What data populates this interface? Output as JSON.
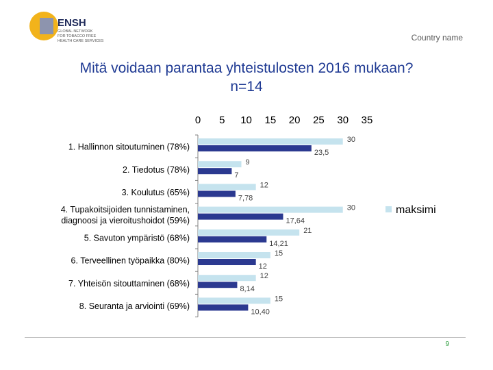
{
  "logo": {
    "name": "ENSH",
    "line1": "GLOBAL NETWORK",
    "line2": "FOR TOBACCO FREE",
    "line3": "HEALTH CARE SERVICES"
  },
  "header": {
    "country": "Country name"
  },
  "slide": {
    "title_line1": "Mitä voidaan parantaa yhteistulosten 2016 mukaan?",
    "title_line2": "n=14",
    "page_number": "9"
  },
  "colors": {
    "maksimi": "#c5e3ee",
    "tulos": "#2b3990",
    "title": "#1f3a93",
    "logo_yellow": "#f2b31b"
  },
  "chart_data": {
    "type": "bar",
    "orientation": "horizontal",
    "xlim": [
      0,
      35
    ],
    "x_ticks": [
      "0",
      "5",
      "10",
      "15",
      "20",
      "25",
      "30",
      "35"
    ],
    "categories": [
      [
        "1.  Hallinnon sitoutuminen (78%)"
      ],
      [
        "2.  Tiedotus (78%)"
      ],
      [
        "3.  Koulutus (65%)"
      ],
      [
        "4.  Tupakoitsijoiden tunnistaminen,",
        "diagnoosi  ja vieroitushoidot (59%)"
      ],
      [
        "5.  Savuton ympäristö (68%)"
      ],
      [
        "6.  Terveellinen työpaikka (80%)"
      ],
      [
        "7.  Yhteisön sitouttaminen (68%)"
      ],
      [
        "8.  Seuranta ja arviointi (69%)"
      ]
    ],
    "series": [
      {
        "name": "maksimi",
        "values": [
          30,
          9,
          12,
          30,
          21,
          15,
          12,
          15
        ],
        "labels": [
          "30",
          "9",
          "12",
          "30",
          "21",
          "15",
          "12",
          "15"
        ]
      },
      {
        "values": [
          23.5,
          7,
          7.78,
          17.64,
          14.21,
          12,
          8.14,
          10.4
        ],
        "labels": [
          "23,5",
          "7",
          "7,78",
          "17,64",
          "14,21",
          "12",
          "8,14",
          "10,40"
        ]
      }
    ],
    "legend": {
      "position": "right",
      "entries": [
        "maksimi"
      ]
    }
  }
}
